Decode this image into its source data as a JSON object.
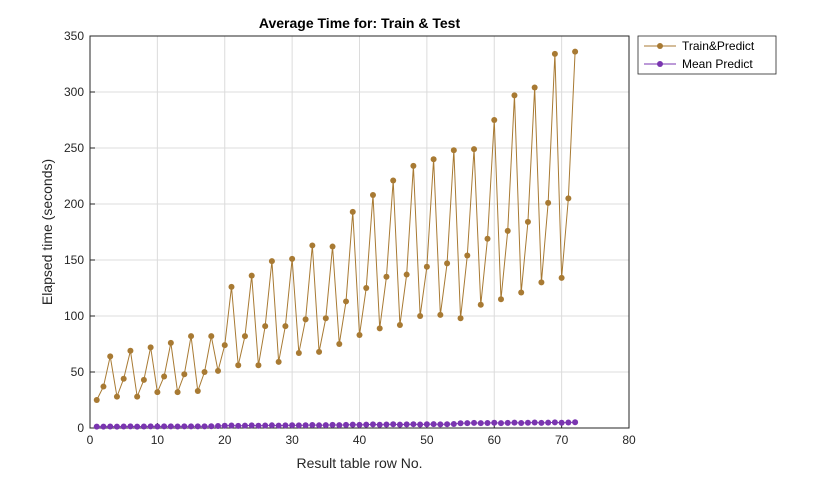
{
  "chart_data": {
    "type": "line",
    "title": "Average Time for: Train & Test",
    "xlabel": "Result table row No.",
    "ylabel": "Elapsed time (seconds)",
    "xlim": [
      0,
      80
    ],
    "ylim": [
      0,
      350
    ],
    "xticks": [
      0,
      10,
      20,
      30,
      40,
      50,
      60,
      70,
      80
    ],
    "yticks": [
      0,
      50,
      100,
      150,
      200,
      250,
      300,
      350
    ],
    "grid": true,
    "legend_position": "outside-top-right",
    "x": [
      1,
      2,
      3,
      4,
      5,
      6,
      7,
      8,
      9,
      10,
      11,
      12,
      13,
      14,
      15,
      16,
      17,
      18,
      19,
      20,
      21,
      22,
      23,
      24,
      25,
      26,
      27,
      28,
      29,
      30,
      31,
      32,
      33,
      34,
      35,
      36,
      37,
      38,
      39,
      40,
      41,
      42,
      43,
      44,
      45,
      46,
      47,
      48,
      49,
      50,
      51,
      52,
      53,
      54,
      55,
      56,
      57,
      58,
      59,
      60,
      61,
      62,
      63,
      64,
      65,
      66,
      67,
      68,
      69,
      70,
      71,
      72
    ],
    "series": [
      {
        "name": "Train&Predict",
        "color": "#A87A33",
        "values": [
          25,
          37,
          64,
          28,
          44,
          69,
          28,
          43,
          72,
          32,
          46,
          76,
          32,
          48,
          82,
          33,
          50,
          82,
          51,
          74,
          126,
          56,
          82,
          136,
          56,
          91,
          149,
          59,
          91,
          151,
          67,
          97,
          163,
          68,
          98,
          162,
          75,
          113,
          193,
          83,
          125,
          208,
          89,
          135,
          221,
          92,
          137,
          234,
          100,
          144,
          240,
          101,
          147,
          248,
          98,
          154,
          249,
          110,
          169,
          275,
          115,
          176,
          297,
          121,
          184,
          304,
          130,
          201,
          334,
          134,
          205,
          336
        ]
      },
      {
        "name": "Mean Predict",
        "color": "#7A35B0",
        "values": [
          1.2,
          1.2,
          1.3,
          1.2,
          1.3,
          1.4,
          1.2,
          1.3,
          1.4,
          1.3,
          1.4,
          1.5,
          1.3,
          1.4,
          1.5,
          1.4,
          1.5,
          1.6,
          1.8,
          2.0,
          2.2,
          1.9,
          2.1,
          2.3,
          2.0,
          2.2,
          2.4,
          2.1,
          2.3,
          2.5,
          2.3,
          2.5,
          2.7,
          2.4,
          2.6,
          2.8,
          2.6,
          2.8,
          3.0,
          2.8,
          3.0,
          3.2,
          2.9,
          3.1,
          3.3,
          3.0,
          3.2,
          3.4,
          3.1,
          3.3,
          3.5,
          3.2,
          3.4,
          3.6,
          4.2,
          4.4,
          4.6,
          4.3,
          4.5,
          4.7,
          4.4,
          4.6,
          4.8,
          4.5,
          4.7,
          4.9,
          4.6,
          4.8,
          5.0,
          4.7,
          4.9,
          5.1
        ]
      }
    ]
  }
}
